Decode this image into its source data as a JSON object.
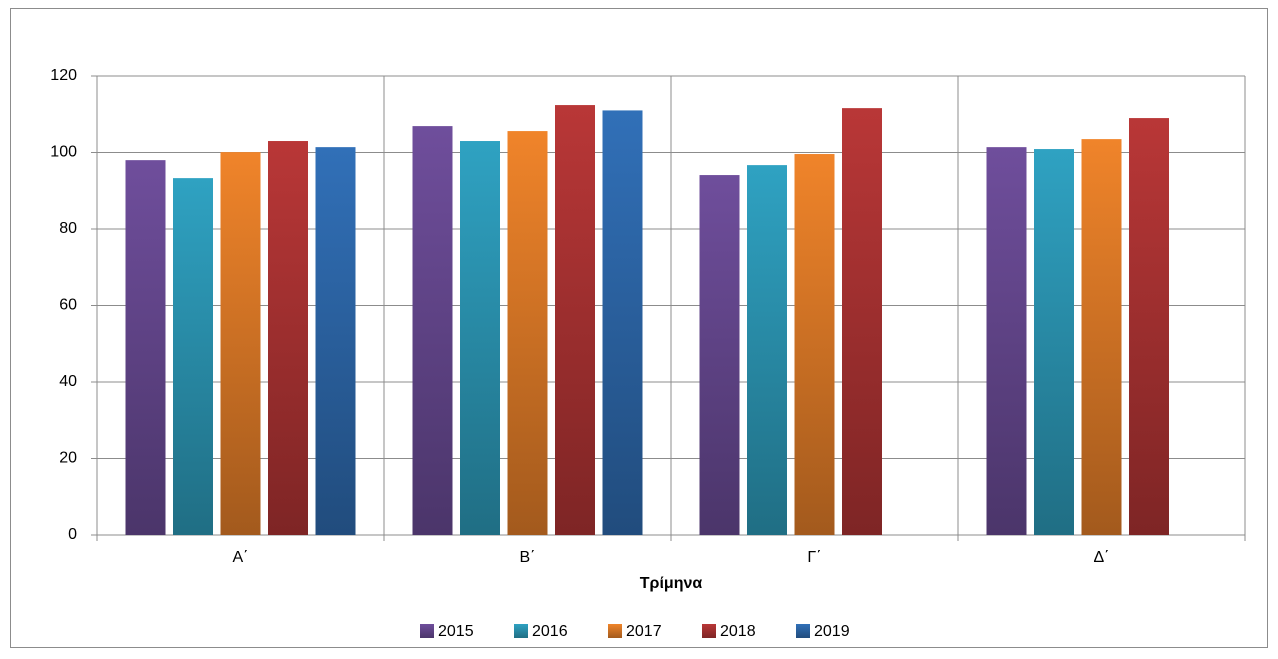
{
  "chart_data": {
    "type": "bar",
    "x_label": "Τρίμηνα",
    "categories": [
      "Α΄",
      "Β΄",
      "Γ΄",
      "Δ΄"
    ],
    "series": [
      {
        "name": "2015",
        "color": "#6f4e9c",
        "values": [
          98.0,
          106.9,
          94.1,
          101.4
        ]
      },
      {
        "name": "2016",
        "color": "#2fa2c2",
        "values": [
          93.3,
          103.0,
          96.7,
          100.9
        ]
      },
      {
        "name": "2017",
        "color": "#f0842a",
        "values": [
          100.1,
          105.6,
          99.6,
          103.5
        ]
      },
      {
        "name": "2018",
        "color": "#b93737",
        "values": [
          103.0,
          112.4,
          111.6,
          109.0
        ]
      },
      {
        "name": "2019",
        "color": "#3170b8",
        "values": [
          101.4,
          111.0,
          null,
          null
        ]
      }
    ],
    "ylim": [
      0,
      120
    ],
    "yticks": [
      0,
      20,
      40,
      60,
      80,
      100,
      120
    ],
    "grid": true
  }
}
